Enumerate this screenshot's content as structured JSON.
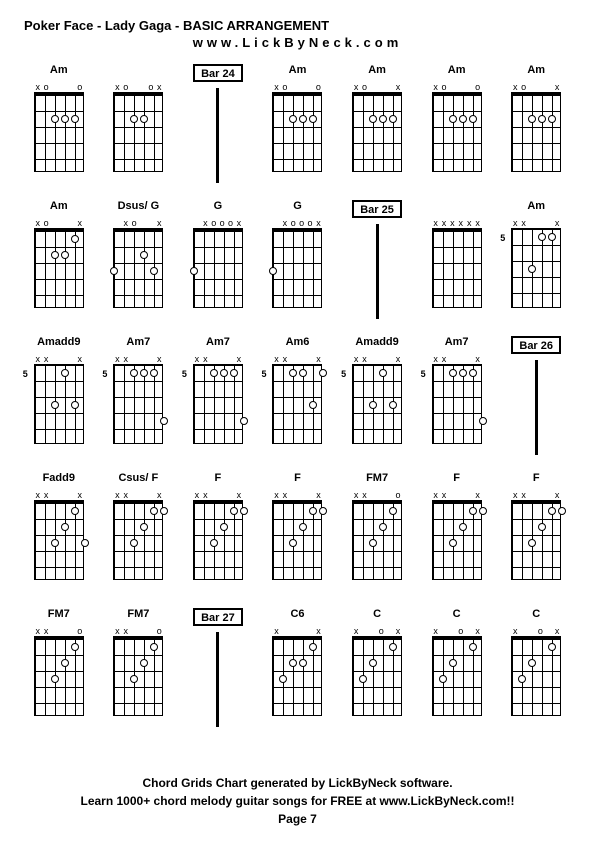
{
  "page": {
    "title": "Poker Face - Lady Gaga - BASIC ARRANGEMENT",
    "subtitle": "www.LickByNeck.com",
    "footer_line1": "Chord Grids Chart generated by LickByNeck software.",
    "footer_line2": "Learn 1000+ chord melody guitar songs for FREE at www.LickByNeck.com!!",
    "footer_line3": "Page 7"
  },
  "style": {
    "bg_color": "#ffffff",
    "text_color": "#000000",
    "grid_cols": 7,
    "grid_rows": 5,
    "fretboard_width": 50,
    "fretboard_height": 80,
    "strings": 6,
    "frets": 5,
    "title_fontsize": 13,
    "label_fontsize": 11,
    "footer_fontsize": 12,
    "dot_size": 8,
    "dot_fill": "#ffffff",
    "dot_stroke": "#000000"
  },
  "cells": [
    {
      "type": "chord",
      "label": "Am",
      "markers": [
        "x",
        "o",
        "",
        "",
        "",
        "o"
      ],
      "dots": [
        {
          "s": 3,
          "f": 2
        },
        {
          "s": 4,
          "f": 2
        },
        {
          "s": 5,
          "f": 2
        }
      ],
      "fret_num": null
    },
    {
      "type": "chord",
      "label": "",
      "markers": [
        "x",
        "o",
        "",
        "",
        "o",
        "x"
      ],
      "dots": [
        {
          "s": 3,
          "f": 2
        },
        {
          "s": 4,
          "f": 2
        }
      ],
      "fret_num": null
    },
    {
      "type": "bar",
      "label": "Bar 24"
    },
    {
      "type": "chord",
      "label": "Am",
      "markers": [
        "x",
        "o",
        "",
        "",
        "",
        "o"
      ],
      "dots": [
        {
          "s": 3,
          "f": 2
        },
        {
          "s": 4,
          "f": 2
        },
        {
          "s": 5,
          "f": 2
        }
      ],
      "fret_num": null
    },
    {
      "type": "chord",
      "label": "Am",
      "markers": [
        "x",
        "o",
        "",
        "",
        "",
        "x"
      ],
      "dots": [
        {
          "s": 3,
          "f": 2
        },
        {
          "s": 4,
          "f": 2
        },
        {
          "s": 5,
          "f": 2
        }
      ],
      "fret_num": null
    },
    {
      "type": "chord",
      "label": "Am",
      "markers": [
        "x",
        "o",
        "",
        "",
        "",
        "o"
      ],
      "dots": [
        {
          "s": 3,
          "f": 2
        },
        {
          "s": 4,
          "f": 2
        },
        {
          "s": 5,
          "f": 2
        }
      ],
      "fret_num": null
    },
    {
      "type": "chord",
      "label": "Am",
      "markers": [
        "x",
        "o",
        "",
        "",
        "",
        "x"
      ],
      "dots": [
        {
          "s": 3,
          "f": 2
        },
        {
          "s": 4,
          "f": 2
        },
        {
          "s": 5,
          "f": 2
        }
      ],
      "fret_num": null
    },
    {
      "type": "chord",
      "label": "Am",
      "markers": [
        "x",
        "o",
        "",
        "",
        "",
        "x"
      ],
      "dots": [
        {
          "s": 3,
          "f": 2
        },
        {
          "s": 5,
          "f": 1
        },
        {
          "s": 4,
          "f": 2
        }
      ],
      "fret_num": null
    },
    {
      "type": "chord",
      "label": "Dsus/ G",
      "markers": [
        "",
        "x",
        "o",
        "",
        "",
        "x"
      ],
      "dots": [
        {
          "s": 1,
          "f": 3
        },
        {
          "s": 4,
          "f": 2
        },
        {
          "s": 5,
          "f": 3
        }
      ],
      "fret_num": null
    },
    {
      "type": "chord",
      "label": "G",
      "markers": [
        "",
        "x",
        "o",
        "o",
        "o",
        "x"
      ],
      "dots": [
        {
          "s": 1,
          "f": 3
        }
      ],
      "fret_num": null
    },
    {
      "type": "chord",
      "label": "G",
      "markers": [
        "",
        "x",
        "o",
        "o",
        "o",
        "x"
      ],
      "dots": [
        {
          "s": 1,
          "f": 3
        }
      ],
      "fret_num": null
    },
    {
      "type": "bar",
      "label": "Bar 25"
    },
    {
      "type": "chord",
      "label": "",
      "markers": [
        "x",
        "x",
        "x",
        "x",
        "x",
        "x"
      ],
      "dots": [],
      "fret_num": null
    },
    {
      "type": "chord",
      "label": "Am",
      "markers": [
        "x",
        "x",
        "",
        "",
        "",
        "x"
      ],
      "dots": [
        {
          "s": 3,
          "f": 3
        },
        {
          "s": 4,
          "f": 1
        },
        {
          "s": 5,
          "f": 1
        }
      ],
      "fret_num": 5,
      "no_nut": true
    },
    {
      "type": "chord",
      "label": "Amadd9",
      "markers": [
        "x",
        "x",
        "",
        "",
        "",
        "x"
      ],
      "dots": [
        {
          "s": 3,
          "f": 3
        },
        {
          "s": 4,
          "f": 1
        },
        {
          "s": 5,
          "f": 3
        }
      ],
      "fret_num": 5,
      "no_nut": true
    },
    {
      "type": "chord",
      "label": "Am7",
      "markers": [
        "x",
        "x",
        "",
        "",
        "",
        "x"
      ],
      "dots": [
        {
          "s": 3,
          "f": 1
        },
        {
          "s": 4,
          "f": 1
        },
        {
          "s": 5,
          "f": 1
        },
        {
          "s": 6,
          "f": 4
        }
      ],
      "fret_num": 5,
      "no_nut": true
    },
    {
      "type": "chord",
      "label": "Am7",
      "markers": [
        "x",
        "x",
        "",
        "",
        "",
        "x"
      ],
      "dots": [
        {
          "s": 3,
          "f": 1
        },
        {
          "s": 4,
          "f": 1
        },
        {
          "s": 5,
          "f": 1
        },
        {
          "s": 6,
          "f": 4
        }
      ],
      "fret_num": 5,
      "no_nut": true
    },
    {
      "type": "chord",
      "label": "Am6",
      "markers": [
        "x",
        "x",
        "",
        "",
        "",
        "x"
      ],
      "dots": [
        {
          "s": 3,
          "f": 1
        },
        {
          "s": 4,
          "f": 1
        },
        {
          "s": 5,
          "f": 3
        },
        {
          "s": 6,
          "f": 1
        }
      ],
      "fret_num": 5,
      "no_nut": true
    },
    {
      "type": "chord",
      "label": "Amadd9",
      "markers": [
        "x",
        "x",
        "",
        "",
        "",
        "x"
      ],
      "dots": [
        {
          "s": 3,
          "f": 3
        },
        {
          "s": 4,
          "f": 1
        },
        {
          "s": 5,
          "f": 3
        }
      ],
      "fret_num": 5,
      "no_nut": true
    },
    {
      "type": "chord",
      "label": "Am7",
      "markers": [
        "x",
        "x",
        "",
        "",
        "",
        "x"
      ],
      "dots": [
        {
          "s": 3,
          "f": 1
        },
        {
          "s": 4,
          "f": 1
        },
        {
          "s": 5,
          "f": 1
        },
        {
          "s": 6,
          "f": 4
        }
      ],
      "fret_num": 5,
      "no_nut": true
    },
    {
      "type": "bar",
      "label": "Bar 26"
    },
    {
      "type": "chord",
      "label": "Fadd9",
      "markers": [
        "x",
        "x",
        "",
        "",
        "",
        "x"
      ],
      "dots": [
        {
          "s": 3,
          "f": 3
        },
        {
          "s": 4,
          "f": 2
        },
        {
          "s": 5,
          "f": 1
        },
        {
          "s": 6,
          "f": 3
        }
      ],
      "fret_num": null
    },
    {
      "type": "chord",
      "label": "Csus/ F",
      "markers": [
        "x",
        "x",
        "",
        "",
        "",
        "x"
      ],
      "dots": [
        {
          "s": 3,
          "f": 3
        },
        {
          "s": 4,
          "f": 2
        },
        {
          "s": 5,
          "f": 1
        },
        {
          "s": 6,
          "f": 1
        }
      ],
      "fret_num": null
    },
    {
      "type": "chord",
      "label": "F",
      "markers": [
        "x",
        "x",
        "",
        "",
        "",
        "x"
      ],
      "dots": [
        {
          "s": 3,
          "f": 3
        },
        {
          "s": 4,
          "f": 2
        },
        {
          "s": 5,
          "f": 1
        },
        {
          "s": 6,
          "f": 1
        }
      ],
      "fret_num": null
    },
    {
      "type": "chord",
      "label": "F",
      "markers": [
        "x",
        "x",
        "",
        "",
        "",
        "x"
      ],
      "dots": [
        {
          "s": 3,
          "f": 3
        },
        {
          "s": 4,
          "f": 2
        },
        {
          "s": 5,
          "f": 1
        },
        {
          "s": 6,
          "f": 1
        }
      ],
      "fret_num": null
    },
    {
      "type": "chord",
      "label": "FM7",
      "markers": [
        "x",
        "x",
        "",
        "",
        "",
        "o"
      ],
      "dots": [
        {
          "s": 3,
          "f": 3
        },
        {
          "s": 4,
          "f": 2
        },
        {
          "s": 5,
          "f": 1
        }
      ],
      "fret_num": null
    },
    {
      "type": "chord",
      "label": "F",
      "markers": [
        "x",
        "x",
        "",
        "",
        "",
        "x"
      ],
      "dots": [
        {
          "s": 3,
          "f": 3
        },
        {
          "s": 4,
          "f": 2
        },
        {
          "s": 5,
          "f": 1
        },
        {
          "s": 6,
          "f": 1
        }
      ],
      "fret_num": null
    },
    {
      "type": "chord",
      "label": "F",
      "markers": [
        "x",
        "x",
        "",
        "",
        "",
        "x"
      ],
      "dots": [
        {
          "s": 3,
          "f": 3
        },
        {
          "s": 4,
          "f": 2
        },
        {
          "s": 5,
          "f": 1
        },
        {
          "s": 6,
          "f": 1
        }
      ],
      "fret_num": null
    },
    {
      "type": "chord",
      "label": "FM7",
      "markers": [
        "x",
        "x",
        "",
        "",
        "",
        "o"
      ],
      "dots": [
        {
          "s": 3,
          "f": 3
        },
        {
          "s": 4,
          "f": 2
        },
        {
          "s": 5,
          "f": 1
        }
      ],
      "fret_num": null
    },
    {
      "type": "chord",
      "label": "FM7",
      "markers": [
        "x",
        "x",
        "",
        "",
        "",
        "o"
      ],
      "dots": [
        {
          "s": 3,
          "f": 3
        },
        {
          "s": 4,
          "f": 2
        },
        {
          "s": 5,
          "f": 1
        }
      ],
      "fret_num": null
    },
    {
      "type": "bar",
      "label": "Bar 27"
    },
    {
      "type": "chord",
      "label": "C6",
      "markers": [
        "x",
        "",
        "",
        "",
        "",
        "x"
      ],
      "dots": [
        {
          "s": 2,
          "f": 3
        },
        {
          "s": 3,
          "f": 2
        },
        {
          "s": 4,
          "f": 2
        },
        {
          "s": 5,
          "f": 1
        }
      ],
      "fret_num": null
    },
    {
      "type": "chord",
      "label": "C",
      "markers": [
        "x",
        "",
        "",
        "o",
        "",
        "x"
      ],
      "dots": [
        {
          "s": 2,
          "f": 3
        },
        {
          "s": 3,
          "f": 2
        },
        {
          "s": 5,
          "f": 1
        }
      ],
      "fret_num": null
    },
    {
      "type": "chord",
      "label": "C",
      "markers": [
        "x",
        "",
        "",
        "o",
        "",
        "x"
      ],
      "dots": [
        {
          "s": 2,
          "f": 3
        },
        {
          "s": 3,
          "f": 2
        },
        {
          "s": 5,
          "f": 1
        }
      ],
      "fret_num": null
    },
    {
      "type": "chord",
      "label": "C",
      "markers": [
        "x",
        "",
        "",
        "o",
        "",
        "x"
      ],
      "dots": [
        {
          "s": 2,
          "f": 3
        },
        {
          "s": 3,
          "f": 2
        },
        {
          "s": 5,
          "f": 1
        }
      ],
      "fret_num": null
    }
  ]
}
